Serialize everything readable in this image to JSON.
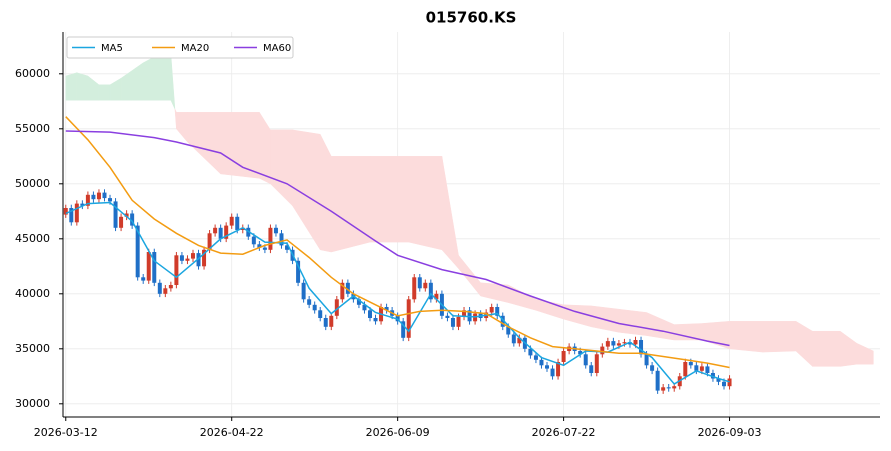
{
  "chart_data": {
    "type": "candlestick",
    "title": "015760.KS",
    "x": [
      0,
      1,
      2,
      3,
      4,
      5,
      6,
      7,
      8,
      9,
      10,
      11,
      12,
      13,
      14,
      15,
      16,
      17,
      18,
      19,
      20,
      21,
      22,
      23,
      24,
      25,
      26,
      27,
      28,
      29,
      30,
      31,
      32,
      33,
      34,
      35,
      36,
      37,
      38,
      39,
      40,
      41,
      42,
      43,
      44,
      45,
      46,
      47,
      48,
      49,
      50,
      51,
      52,
      53,
      54,
      55,
      56,
      57,
      58,
      59,
      60,
      61,
      62,
      63,
      64,
      65,
      66,
      67,
      68,
      69,
      70,
      71,
      72,
      73,
      74,
      75,
      76,
      77,
      78,
      79,
      80,
      81,
      82,
      83,
      84,
      85,
      86,
      87,
      88,
      89,
      90,
      91,
      92,
      93,
      94,
      95,
      96,
      97,
      98,
      99,
      100,
      101,
      102,
      103,
      104,
      105,
      106,
      107,
      108,
      109,
      110,
      111,
      112,
      113,
      114,
      115,
      116,
      117,
      118,
      119,
      120
    ],
    "open": [
      47200,
      47800,
      46500,
      48200,
      48000,
      49000,
      48600,
      49200,
      48700,
      48400,
      46000,
      47000,
      47300,
      46200,
      41500,
      41200,
      43800,
      41000,
      40000,
      40500,
      40800,
      43500,
      43000,
      43200,
      43700,
      42500,
      44000,
      45500,
      46000,
      45000,
      46200,
      47000,
      45800,
      46000,
      45200,
      44500,
      44200,
      44000,
      46000,
      45500,
      44400,
      44000,
      43000,
      41000,
      39500,
      39000,
      38500,
      37800,
      37000,
      38000,
      39500,
      41000,
      40000,
      39500,
      39000,
      38500,
      37800,
      37500,
      38800,
      38500,
      38000,
      37500,
      36000,
      39500,
      41500,
      40500,
      41000,
      39500,
      40000,
      38000,
      37800,
      37000,
      37900,
      38500,
      37500,
      38200,
      37800,
      38300,
      38800,
      38000,
      37000,
      36300,
      35500,
      36000,
      35000,
      34400,
      34000,
      33500,
      33200,
      32500,
      33800,
      34800,
      35200,
      34800,
      34500,
      33500,
      32800,
      34500,
      35200,
      35700,
      35300,
      35500,
      35600,
      35400,
      35800,
      34500,
      33500,
      33000,
      31200,
      31500,
      31400,
      31600,
      32500,
      33800,
      33500,
      33000,
      33400,
      32800,
      32300,
      32000,
      31600
    ],
    "high": [
      48100,
      48100,
      48500,
      48500,
      49300,
      49300,
      49500,
      49500,
      49000,
      48700,
      47300,
      47600,
      47600,
      46500,
      41800,
      44100,
      44100,
      41300,
      40800,
      41100,
      43800,
      43800,
      43500,
      44000,
      44000,
      44300,
      45800,
      46300,
      46300,
      46500,
      47300,
      47300,
      46300,
      46300,
      45500,
      44800,
      44500,
      46300,
      46300,
      45800,
      44700,
      44300,
      43300,
      41300,
      39800,
      39300,
      38800,
      38100,
      38300,
      39800,
      41300,
      41300,
      40300,
      39800,
      39300,
      38800,
      38100,
      39100,
      39100,
      38800,
      38300,
      37800,
      39800,
      41800,
      41800,
      41300,
      41300,
      40300,
      40300,
      38300,
      38100,
      38200,
      38800,
      38800,
      38500,
      38500,
      38600,
      39100,
      39100,
      38300,
      37300,
      36600,
      36300,
      36300,
      35300,
      34700,
      34300,
      33800,
      33500,
      34100,
      35100,
      35500,
      35500,
      35100,
      34800,
      33800,
      34800,
      35500,
      36000,
      36000,
      35800,
      35900,
      35900,
      36100,
      36100,
      34800,
      33800,
      33300,
      31800,
      31800,
      31900,
      32800,
      34100,
      34100,
      33800,
      33700,
      33700,
      33100,
      32600,
      32300,
      32600
    ],
    "low": [
      46900,
      46200,
      46200,
      47700,
      47700,
      48300,
      48300,
      48400,
      48100,
      45700,
      45700,
      46700,
      45900,
      41200,
      40900,
      40900,
      40700,
      39700,
      39700,
      40200,
      40500,
      42700,
      42700,
      42900,
      42200,
      42200,
      43700,
      45200,
      44700,
      44700,
      45900,
      45500,
      45500,
      44900,
      44200,
      43900,
      43700,
      43700,
      45200,
      44100,
      43700,
      42700,
      40700,
      39200,
      38700,
      38200,
      37500,
      36700,
      36700,
      37700,
      39200,
      39700,
      39200,
      38700,
      38200,
      37500,
      37200,
      37200,
      38200,
      37700,
      37200,
      35700,
      35700,
      39200,
      40200,
      40200,
      39200,
      39200,
      37700,
      37500,
      36700,
      36700,
      37600,
      37200,
      37200,
      37500,
      37500,
      38000,
      37700,
      36700,
      36000,
      35200,
      35200,
      34700,
      34100,
      33700,
      33200,
      32900,
      32200,
      32200,
      33500,
      34500,
      34500,
      34200,
      33200,
      32500,
      32500,
      34200,
      34900,
      35000,
      35000,
      35200,
      35100,
      35100,
      34200,
      33200,
      32700,
      30900,
      30900,
      31100,
      31100,
      31300,
      32200,
      33200,
      32700,
      32700,
      32500,
      32000,
      31700,
      31300,
      31300
    ],
    "close": [
      47800,
      46500,
      48200,
      48000,
      49000,
      48600,
      49200,
      48700,
      48400,
      46000,
      47000,
      47300,
      46200,
      41500,
      41200,
      43800,
      41000,
      40000,
      40500,
      40800,
      43500,
      43000,
      43200,
      43700,
      42500,
      44000,
      45500,
      46000,
      45000,
      46200,
      47000,
      45800,
      46000,
      45200,
      44500,
      44200,
      44000,
      46000,
      45500,
      44400,
      44000,
      43000,
      41000,
      39500,
      39000,
      38500,
      37800,
      37000,
      38000,
      39500,
      41000,
      40000,
      39500,
      39000,
      38500,
      37800,
      37500,
      38800,
      38500,
      38000,
      37500,
      36000,
      39500,
      41500,
      40500,
      41000,
      39500,
      40000,
      38000,
      37800,
      37000,
      37900,
      38500,
      37500,
      38200,
      37800,
      38300,
      38800,
      38000,
      37000,
      36300,
      35500,
      36000,
      35000,
      34400,
      34000,
      33500,
      33200,
      32500,
      33800,
      34800,
      35200,
      34800,
      34500,
      33500,
      32800,
      34500,
      35200,
      35700,
      35300,
      35500,
      35600,
      35400,
      35800,
      34500,
      33500,
      33000,
      31200,
      31500,
      31400,
      31600,
      32500,
      33800,
      33500,
      33000,
      33400,
      32800,
      32300,
      32000,
      31600,
      32300
    ],
    "up_color": "#d03b2a",
    "down_color": "#1f6fc7",
    "series": [
      {
        "name": "MA5",
        "color": "#1ba6e0",
        "x": [
          0,
          4,
          8,
          12,
          16,
          20,
          24,
          28,
          32,
          36,
          40,
          44,
          48,
          52,
          56,
          60,
          62,
          66,
          70,
          74,
          78,
          82,
          86,
          90,
          94,
          98,
          102,
          106,
          110,
          114,
          118,
          120
        ],
        "values": [
          47300,
          48200,
          48300,
          46600,
          43000,
          41500,
          43200,
          45000,
          46000,
          44700,
          44600,
          40500,
          38200,
          39800,
          38300,
          37700,
          36600,
          40000,
          38000,
          37900,
          38200,
          36000,
          34200,
          33500,
          34800,
          34700,
          35600,
          34200,
          31800,
          33000,
          32300,
          32000
        ]
      },
      {
        "name": "MA20",
        "color": "#f39c12",
        "x": [
          0,
          4,
          8,
          12,
          16,
          20,
          24,
          28,
          32,
          36,
          40,
          44,
          48,
          52,
          56,
          60,
          64,
          68,
          72,
          76,
          80,
          84,
          88,
          92,
          96,
          100,
          104,
          108,
          112,
          116,
          120
        ],
        "values": [
          56100,
          54000,
          51500,
          48500,
          46800,
          45500,
          44400,
          43700,
          43600,
          44400,
          44900,
          43300,
          41500,
          40000,
          39000,
          38000,
          38400,
          38500,
          38400,
          38200,
          37000,
          36000,
          35200,
          35000,
          34800,
          34600,
          34600,
          34300,
          34000,
          33700,
          33300
        ]
      },
      {
        "name": "MA60",
        "color": "#8a3fe0",
        "x": [
          0,
          8,
          16,
          20,
          28,
          32,
          40,
          48,
          56,
          60,
          68,
          76,
          84,
          92,
          100,
          108,
          116,
          120
        ],
        "values": [
          54800,
          54700,
          54200,
          53800,
          52800,
          51500,
          50000,
          47500,
          44800,
          43500,
          42200,
          41300,
          39800,
          38400,
          37300,
          36600,
          35700,
          35300
        ]
      }
    ],
    "cloud": {
      "x": [
        0,
        2,
        4,
        6,
        8,
        10,
        12,
        14,
        17,
        19,
        20,
        22,
        28,
        35,
        37,
        41,
        46,
        48,
        55,
        62,
        68,
        71,
        75,
        80,
        85,
        90,
        95,
        100,
        105,
        110,
        115,
        120,
        126,
        132,
        135,
        140,
        143,
        146
      ],
      "span_a": [
        59800,
        60100,
        59800,
        59000,
        59000,
        59600,
        60300,
        61000,
        61800,
        61800,
        55000,
        53800,
        50900,
        50500,
        50000,
        48000,
        44000,
        43800,
        44700,
        44700,
        44000,
        42300,
        39800,
        39200,
        38500,
        37700,
        37000,
        36500,
        36200,
        35800,
        35800,
        35000,
        34700,
        34800,
        33400,
        33400,
        33600,
        33600
      ],
      "span_b": [
        57600,
        57600,
        57600,
        57600,
        57600,
        57600,
        57600,
        57600,
        57600,
        57600,
        56500,
        56500,
        56500,
        56500,
        54900,
        54900,
        54500,
        52500,
        52500,
        52500,
        52500,
        43500,
        41000,
        40800,
        39500,
        39000,
        38900,
        38600,
        38300,
        37200,
        37300,
        37500,
        37500,
        37500,
        36600,
        36600,
        35500,
        34800
      ],
      "up_color": "#d3eedd",
      "down_color": "#fcdcdc"
    },
    "xlim": [
      -0.5,
      147.2
    ],
    "ylim": [
      28800,
      63800
    ],
    "xticks": [
      {
        "value": 0,
        "label": "2026-03-12"
      },
      {
        "value": 30,
        "label": "2026-04-22"
      },
      {
        "value": 60,
        "label": "2026-06-09"
      },
      {
        "value": 90,
        "label": "2026-07-22"
      },
      {
        "value": 120,
        "label": "2026-09-03"
      }
    ],
    "yticks": [
      30000,
      35000,
      40000,
      45000,
      50000,
      55000,
      60000
    ],
    "grid": true,
    "legend": "upper left"
  }
}
